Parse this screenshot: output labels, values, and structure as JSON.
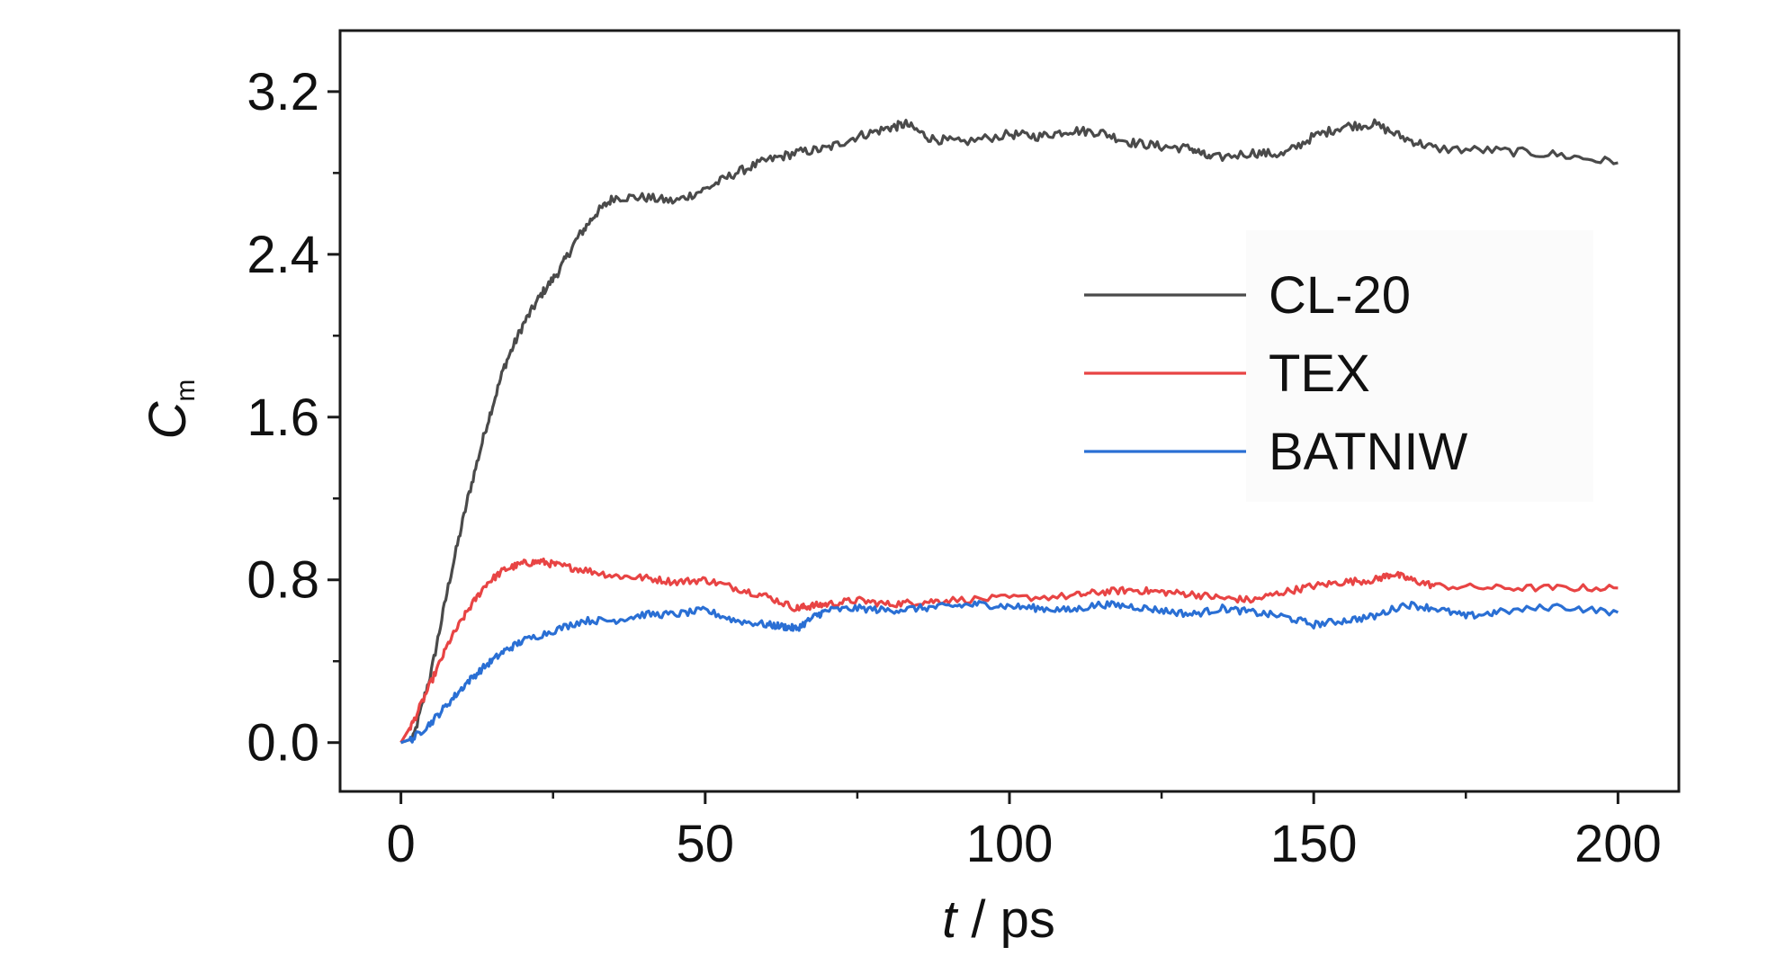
{
  "chart_data": {
    "type": "line",
    "xlabel": {
      "italic": "t",
      "rest": " / ps"
    },
    "ylabel": {
      "main": "C",
      "sub": "m"
    },
    "xlim": [
      -10,
      210
    ],
    "ylim": [
      -0.24,
      3.5
    ],
    "xticks": [
      0,
      50,
      100,
      150,
      200
    ],
    "xtick_labels": [
      "0",
      "50",
      "100",
      "150",
      "200"
    ],
    "xminor": [
      25,
      75,
      125,
      175
    ],
    "yticks": [
      0.0,
      0.8,
      1.6,
      2.4,
      3.2
    ],
    "ytick_labels": [
      "0.0",
      "0.8",
      "1.6",
      "2.4",
      "3.2"
    ],
    "yminor": [
      0.4,
      1.2,
      2.0,
      2.8
    ],
    "grid": false,
    "legend_position": "right",
    "series": [
      {
        "name": "CL-20",
        "color": "#4a4a4a",
        "x": [
          0,
          2,
          5,
          8,
          11,
          14,
          17,
          20,
          23,
          26,
          29,
          32,
          35,
          40,
          45,
          50,
          55,
          60,
          65,
          70,
          75,
          80,
          83,
          87,
          92,
          100,
          105,
          110,
          115,
          120,
          125,
          130,
          133,
          140,
          145,
          150,
          155,
          160,
          165,
          170,
          180,
          190,
          200
        ],
        "y": [
          0.0,
          0.02,
          0.35,
          0.8,
          1.2,
          1.55,
          1.85,
          2.05,
          2.2,
          2.32,
          2.48,
          2.6,
          2.68,
          2.68,
          2.66,
          2.72,
          2.8,
          2.86,
          2.9,
          2.92,
          2.98,
          3.02,
          3.04,
          2.97,
          2.95,
          2.99,
          2.98,
          3.01,
          3.0,
          2.95,
          2.93,
          2.92,
          2.87,
          2.9,
          2.89,
          2.98,
          3.03,
          3.04,
          2.97,
          2.92,
          2.91,
          2.89,
          2.85
        ]
      },
      {
        "name": "TEX",
        "color": "#e84444",
        "x": [
          0,
          2,
          5,
          8,
          11,
          14,
          17,
          20,
          23,
          26,
          30,
          35,
          40,
          45,
          50,
          55,
          60,
          65,
          67,
          70,
          75,
          80,
          85,
          90,
          100,
          110,
          115,
          120,
          125,
          130,
          135,
          140,
          145,
          150,
          155,
          160,
          163,
          166,
          170,
          180,
          190,
          200
        ],
        "y": [
          0.0,
          0.1,
          0.3,
          0.5,
          0.65,
          0.78,
          0.85,
          0.88,
          0.89,
          0.87,
          0.85,
          0.82,
          0.81,
          0.79,
          0.8,
          0.76,
          0.72,
          0.66,
          0.67,
          0.68,
          0.7,
          0.68,
          0.69,
          0.7,
          0.71,
          0.72,
          0.74,
          0.75,
          0.74,
          0.73,
          0.71,
          0.7,
          0.74,
          0.77,
          0.79,
          0.8,
          0.83,
          0.8,
          0.77,
          0.76,
          0.76,
          0.76
        ]
      },
      {
        "name": "BATNIW",
        "color": "#2a6fd4",
        "x": [
          0,
          2,
          5,
          8,
          11,
          14,
          17,
          20,
          25,
          30,
          35,
          40,
          45,
          50,
          55,
          60,
          63,
          65,
          68,
          70,
          75,
          80,
          85,
          90,
          95,
          100,
          105,
          110,
          115,
          120,
          125,
          130,
          135,
          140,
          145,
          150,
          155,
          160,
          165,
          170,
          175,
          180,
          190,
          200
        ],
        "y": [
          0.0,
          0.02,
          0.1,
          0.2,
          0.3,
          0.38,
          0.45,
          0.5,
          0.55,
          0.6,
          0.6,
          0.63,
          0.63,
          0.65,
          0.6,
          0.58,
          0.57,
          0.56,
          0.62,
          0.65,
          0.66,
          0.65,
          0.66,
          0.67,
          0.68,
          0.67,
          0.66,
          0.65,
          0.68,
          0.67,
          0.65,
          0.63,
          0.66,
          0.64,
          0.62,
          0.58,
          0.6,
          0.62,
          0.68,
          0.66,
          0.62,
          0.64,
          0.67,
          0.64
        ]
      }
    ]
  }
}
